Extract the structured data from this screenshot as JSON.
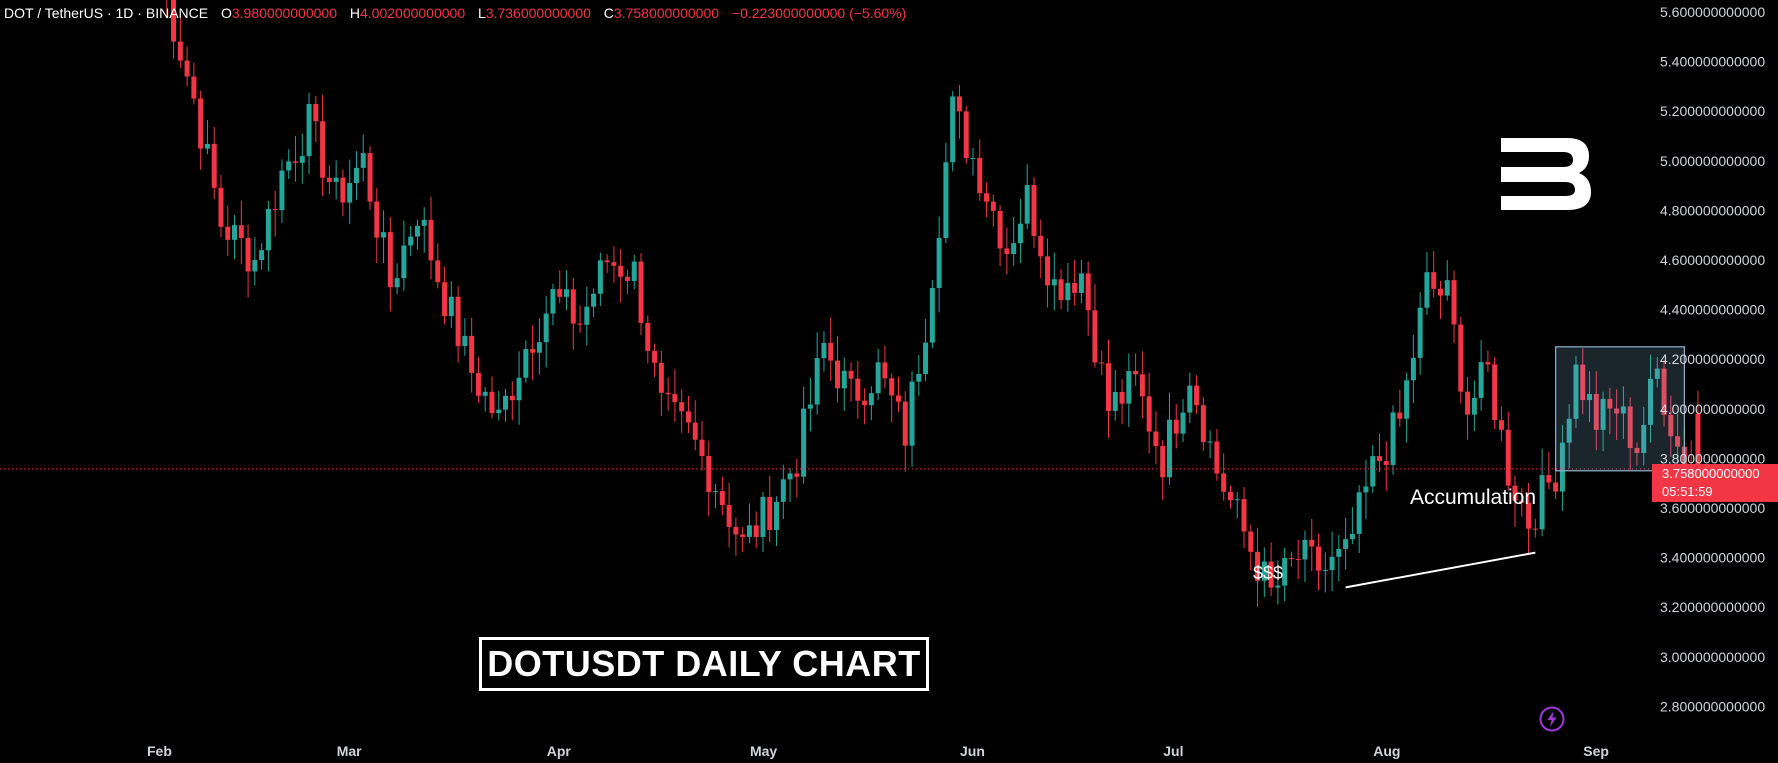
{
  "header": {
    "symbol": "DOT / TetherUS · 1D · BINANCE",
    "open_label": "O",
    "open": "3.980000000000",
    "high_label": "H",
    "high": "4.002000000000",
    "low_label": "L",
    "low": "3.736000000000",
    "close_label": "C",
    "close": "3.758000000000",
    "change": "−0.223000000000 (−5.60%)"
  },
  "price_tag": {
    "price": "3.758000000000",
    "countdown": "05:51:59"
  },
  "chart_data": {
    "type": "candlestick",
    "title": "DOTUSDT DAILY CHART",
    "ylim": [
      2.7,
      5.65
    ],
    "y_ticks": [
      "5.600000000000",
      "5.400000000000",
      "5.200000000000",
      "5.000000000000",
      "4.800000000000",
      "4.600000000000",
      "4.400000000000",
      "4.200000000000",
      "4.000000000000",
      "3.800000000000",
      "3.600000000000",
      "3.400000000000",
      "3.200000000000",
      "3.000000000000",
      "2.800000000000"
    ],
    "y_tick_values": [
      5.6,
      5.4,
      5.2,
      5.0,
      4.8,
      4.6,
      4.4,
      4.2,
      4.0,
      3.8,
      3.6,
      3.4,
      3.2,
      3.0,
      2.8
    ],
    "months": [
      "Feb",
      "Mar",
      "Apr",
      "May",
      "Jun",
      "Jul",
      "Aug",
      "Sep"
    ],
    "current_price": 3.758,
    "up_color": "#26a69a",
    "down_color": "#f23645",
    "close_path": [
      [
        0,
        5.75
      ],
      [
        5,
        5.25
      ],
      [
        9,
        4.75
      ],
      [
        14,
        4.6
      ],
      [
        18,
        4.95
      ],
      [
        22,
        5.15
      ],
      [
        26,
        4.85
      ],
      [
        30,
        5.0
      ],
      [
        34,
        4.5
      ],
      [
        38,
        4.8
      ],
      [
        42,
        4.45
      ],
      [
        46,
        4.15
      ],
      [
        50,
        3.95
      ],
      [
        54,
        4.25
      ],
      [
        58,
        4.45
      ],
      [
        62,
        4.35
      ],
      [
        66,
        4.6
      ],
      [
        70,
        4.55
      ],
      [
        74,
        4.0
      ],
      [
        78,
        3.9
      ],
      [
        82,
        3.7
      ],
      [
        86,
        3.45
      ],
      [
        90,
        3.6
      ],
      [
        94,
        3.8
      ],
      [
        98,
        4.25
      ],
      [
        102,
        4.05
      ],
      [
        106,
        4.15
      ],
      [
        110,
        3.9
      ],
      [
        113,
        4.35
      ],
      [
        117,
        5.2
      ],
      [
        121,
        4.95
      ],
      [
        125,
        4.65
      ],
      [
        128,
        4.85
      ],
      [
        132,
        4.5
      ],
      [
        136,
        4.55
      ],
      [
        140,
        4.0
      ],
      [
        144,
        4.1
      ],
      [
        148,
        3.8
      ],
      [
        152,
        4.15
      ],
      [
        156,
        3.75
      ],
      [
        160,
        3.5
      ],
      [
        164,
        3.25
      ],
      [
        168,
        3.4
      ],
      [
        172,
        3.35
      ],
      [
        175,
        3.4
      ],
      [
        179,
        3.75
      ],
      [
        183,
        3.95
      ],
      [
        187,
        4.5
      ],
      [
        190,
        4.45
      ],
      [
        193,
        4.0
      ],
      [
        196,
        4.15
      ],
      [
        199,
        3.75
      ],
      [
        202,
        3.55
      ],
      [
        204,
        3.65
      ],
      [
        206,
        3.75
      ],
      [
        209,
        4.15
      ],
      [
        212,
        3.95
      ],
      [
        215,
        4.0
      ],
      [
        218,
        3.85
      ],
      [
        221,
        4.15
      ],
      [
        224,
        3.85
      ],
      [
        227,
        3.76
      ]
    ],
    "annotations": [
      {
        "type": "box",
        "label": "Accumulation",
        "x0": 206,
        "x1": 225,
        "y0": 3.75,
        "y1": 4.25
      },
      {
        "type": "line",
        "label": "$$$",
        "x0": 175,
        "y0": 3.28,
        "x1": 203,
        "y1": 3.42
      }
    ]
  }
}
